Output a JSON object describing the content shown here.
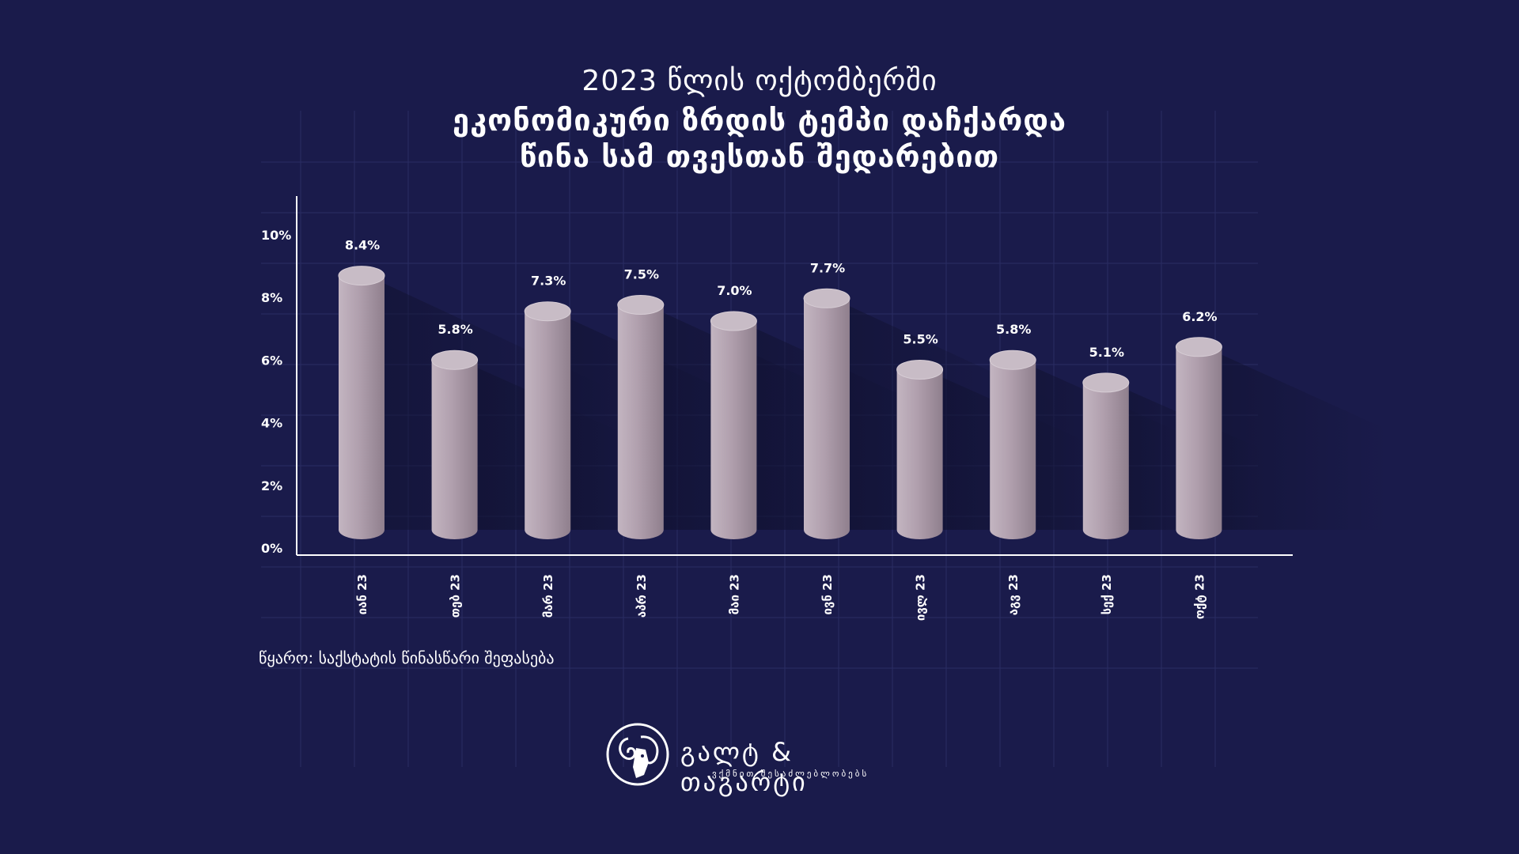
{
  "title": {
    "line1": "2023 წლის ოქტომბერში",
    "line2": "ეკონომიკური ზრდის ტემპი დაჩქარდა",
    "line3": "წინა სამ თვესთან შედარებით"
  },
  "source": "წყარო: საქსტატის წინასწარი შეფასება",
  "logo": {
    "name": "გალტ & თაგარტი",
    "tagline": "ვქმნით შესაძლებლობებს",
    "icon": "ram-head-icon"
  },
  "colors": {
    "background": "#1a1b4b",
    "bar": "#b2a3b0",
    "bar_top": "#c8bcc6",
    "text": "#ffffff"
  },
  "chart_data": {
    "type": "bar",
    "style": "3d-cylinder",
    "categories": [
      "იან 23",
      "თებ 23",
      "მარ 23",
      "აპრ 23",
      "მაი 23",
      "ივნ 23",
      "ივლ 23",
      "აგვ 23",
      "სექ 23",
      "ოქტ 23"
    ],
    "values": [
      8.4,
      5.8,
      7.3,
      7.5,
      7.0,
      7.7,
      5.5,
      5.8,
      5.1,
      6.2
    ],
    "value_labels": [
      "8.4%",
      "5.8%",
      "7.3%",
      "7.5%",
      "7.0%",
      "7.7%",
      "5.5%",
      "5.8%",
      "5.1%",
      "6.2%"
    ],
    "y_ticks": [
      "0%",
      "2%",
      "4%",
      "6%",
      "8%",
      "10%"
    ],
    "ylim": [
      0,
      10
    ],
    "grid": true,
    "legend": "none"
  }
}
